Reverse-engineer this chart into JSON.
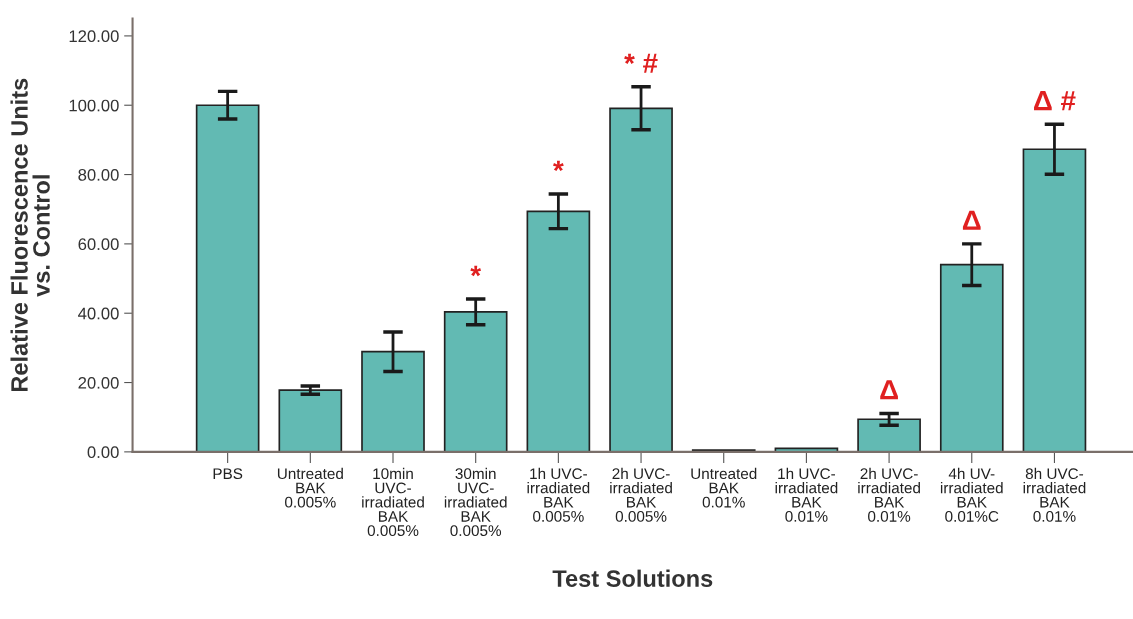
{
  "chart_data": {
    "type": "bar",
    "xlabel": "Test Solutions",
    "ylabel": "Relative Fluorescence Units\nvs. Control",
    "categories": [
      "PBS",
      "Untreated\nBAK\n0.005%",
      "10min\nUVC-\nirradiated\nBAK\n0.005%",
      "30min\nUVC-\nirradiated\nBAK\n0.005%",
      "1h UVC-\nirradiated\nBAK\n0.005%",
      "2h UVC-\nirradiated\nBAK\n0.005%",
      "Untreated\nBAK\n0.01%",
      "1h UVC-\nirradiated\nBAK\n0.01%",
      "2h UVC-\nirradiated\nBAK\n0.01%",
      "4h UV-\nirradiated\nBAK\n0.01%C",
      "8h UVC-\nirradiated\nBAK\n0.01%"
    ],
    "values": [
      100.0,
      17.8,
      28.9,
      40.4,
      69.4,
      99.1,
      0.5,
      1.0,
      9.4,
      54.0,
      87.3
    ],
    "errors": [
      4.0,
      1.2,
      5.7,
      3.7,
      5.0,
      6.2,
      null,
      null,
      1.7,
      6.0,
      7.2
    ],
    "color": "#62bab3",
    "ylim": [
      0,
      125
    ],
    "yticks": [
      {
        "value": 0,
        "label": "0.00"
      },
      {
        "value": 20,
        "label": "20.00"
      },
      {
        "value": 40,
        "label": "40.00"
      },
      {
        "value": 60,
        "label": "60.00"
      },
      {
        "value": 80,
        "label": "80.00"
      },
      {
        "value": 100,
        "label": "100.00"
      },
      {
        "value": 120,
        "label": "120.00"
      }
    ],
    "grid": false,
    "legend": false,
    "annotations": [
      {
        "text": "*",
        "x": "30min\nUVC-\nirradiated\nBAK\n0.005%",
        "y": 44.1
      },
      {
        "text": "*",
        "x": "1h UVC-\nirradiated\nBAK\n0.005%",
        "y": 74.4
      },
      {
        "text": "* #",
        "x": "2h UVC-\nirradiated\nBAK\n0.005%",
        "y": 105.3
      },
      {
        "text": "Δ",
        "x": "2h UVC-\nirradiated\nBAK\n0.01%",
        "y": 11.1
      },
      {
        "text": "Δ",
        "x": "4h UV-\nirradiated\nBAK\n0.01%C",
        "y": 60.0
      },
      {
        "text": "Δ #",
        "x": "8h UVC-\nirradiated\nBAK\n0.01%",
        "y": 94.5
      }
    ]
  }
}
